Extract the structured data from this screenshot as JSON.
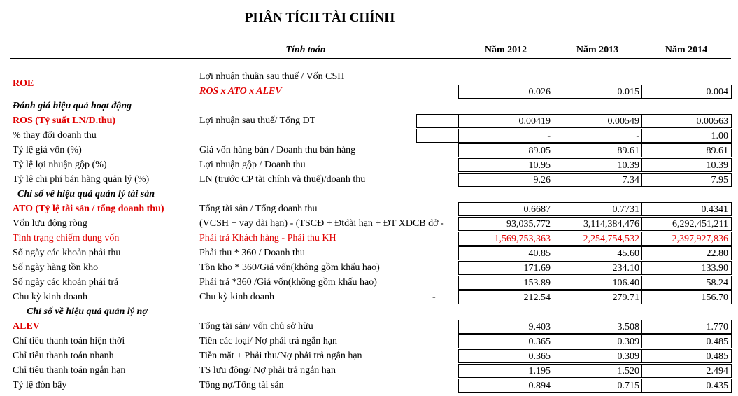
{
  "header": {
    "title": "PHÂN TÍCH TÀI CHÍNH",
    "calc": "Tính toán",
    "years": [
      "Năm 2012",
      "Năm 2013",
      "Năm 2014"
    ]
  },
  "roe": {
    "label": "ROE",
    "formula": "Lợi nhuận thuần sau thuế / Vốn CSH",
    "formula_2": "ROS x ATO x ALEV",
    "values": [
      "0.026",
      "0.015",
      "0.004"
    ]
  },
  "rows": [
    {
      "heading": "Đánh giá hiệu quả hoạt động"
    },
    {
      "label": "ROS (Tỷ suất LN/D.thu)",
      "formula": "Lợi nhuận sau thuế/ Tổng DT",
      "values": [
        "0.00419",
        "0.00549",
        "0.00563"
      ]
    },
    {
      "label": "% thay đổi doanh thu",
      "formula": "",
      "values": [
        "-",
        "-",
        "1.00"
      ]
    },
    {
      "label": "Tỷ lệ giá vốn (%)",
      "formula": "Giá vốn hàng bán / Doanh thu bán hàng",
      "values": [
        "89.05",
        "89.61",
        "89.61"
      ]
    },
    {
      "label": "Tỷ lệ lợi nhuận gộp (%)",
      "formula": "Lợi nhuận gộp / Doanh thu",
      "values": [
        "10.95",
        "10.39",
        "10.39"
      ]
    },
    {
      "label": "Tỷ lệ chi phí bán hàng quản lý (%)",
      "formula": "LN (trước CP tài chính và thuế)/doanh thu",
      "values": [
        "9.26",
        "7.34",
        "7.95"
      ]
    },
    {
      "heading": "Chỉ số về hiệu quả quản lý tài sản"
    },
    {
      "label": "ATO (Tỷ lệ tài sản / tổng doanh thu)",
      "formula": "Tổng tài sản / Tổng doanh thu",
      "values": [
        "0.6687",
        "0.7731",
        "0.4341"
      ]
    },
    {
      "label": "Vốn lưu động ròng",
      "formula": "(VCSH + vay dài hạn) - (TSCĐ + Đtdài hạn + ĐT XDCB dở -",
      "values": [
        "93,035,772",
        "3,114,384,476",
        "6,292,451,211"
      ]
    },
    {
      "label": "Tình trạng chiếm dụng vốn",
      "formula": "Phải trả Khách hàng - Phải thu KH",
      "values": [
        "1,569,753,363",
        "2,254,754,532",
        "2,397,927,836"
      ]
    },
    {
      "label": "Số ngày các khoản phải thu",
      "formula": "Phải thu * 360 / Doanh thu",
      "values": [
        "40.85",
        "45.60",
        "22.80"
      ]
    },
    {
      "label": "Số ngày hàng tồn kho",
      "formula": "Tồn kho * 360/Giá vốn(không gồm khấu hao)",
      "values": [
        "171.69",
        "234.10",
        "133.90"
      ]
    },
    {
      "label": "Số ngày các khoản phải trả",
      "formula": "Phải trả *360 /Giá vốn(không gồm khấu hao)",
      "values": [
        "153.89",
        "106.40",
        "58.24"
      ]
    },
    {
      "label": "Chu kỳ kinh doanh",
      "formula": "Chu kỳ kinh doanh",
      "extra": "-",
      "values": [
        "212.54",
        "279.71",
        "156.70"
      ]
    },
    {
      "heading": "Chỉ số về hiệu quả quản lý nợ"
    },
    {
      "label": "ALEV",
      "formula": "Tổng tài sản/ vốn chủ sở hữu",
      "values": [
        "9.403",
        "3.508",
        "1.770"
      ]
    },
    {
      "label": "Chỉ tiêu thanh toán hiện thời",
      "formula": "Tiền các loại/ Nợ phải trả ngắn hạn",
      "values": [
        "0.365",
        "0.309",
        "0.485"
      ]
    },
    {
      "label": "Chỉ tiêu thanh toán nhanh",
      "formula": "Tiền mặt + Phải thu/Nợ phải trả ngắn hạn",
      "values": [
        "0.365",
        "0.309",
        "0.485"
      ]
    },
    {
      "label": "Chỉ tiêu thanh toán ngắn hạn",
      "formula": "TS lưu động/ Nợ phải trả ngắn hạn",
      "values": [
        "1.195",
        "1.520",
        "2.494"
      ]
    },
    {
      "label": "Tỷ lệ đòn bẩy",
      "formula": "Tổng nợ/Tổng tài sản",
      "values": [
        "0.894",
        "0.715",
        "0.435"
      ]
    }
  ]
}
